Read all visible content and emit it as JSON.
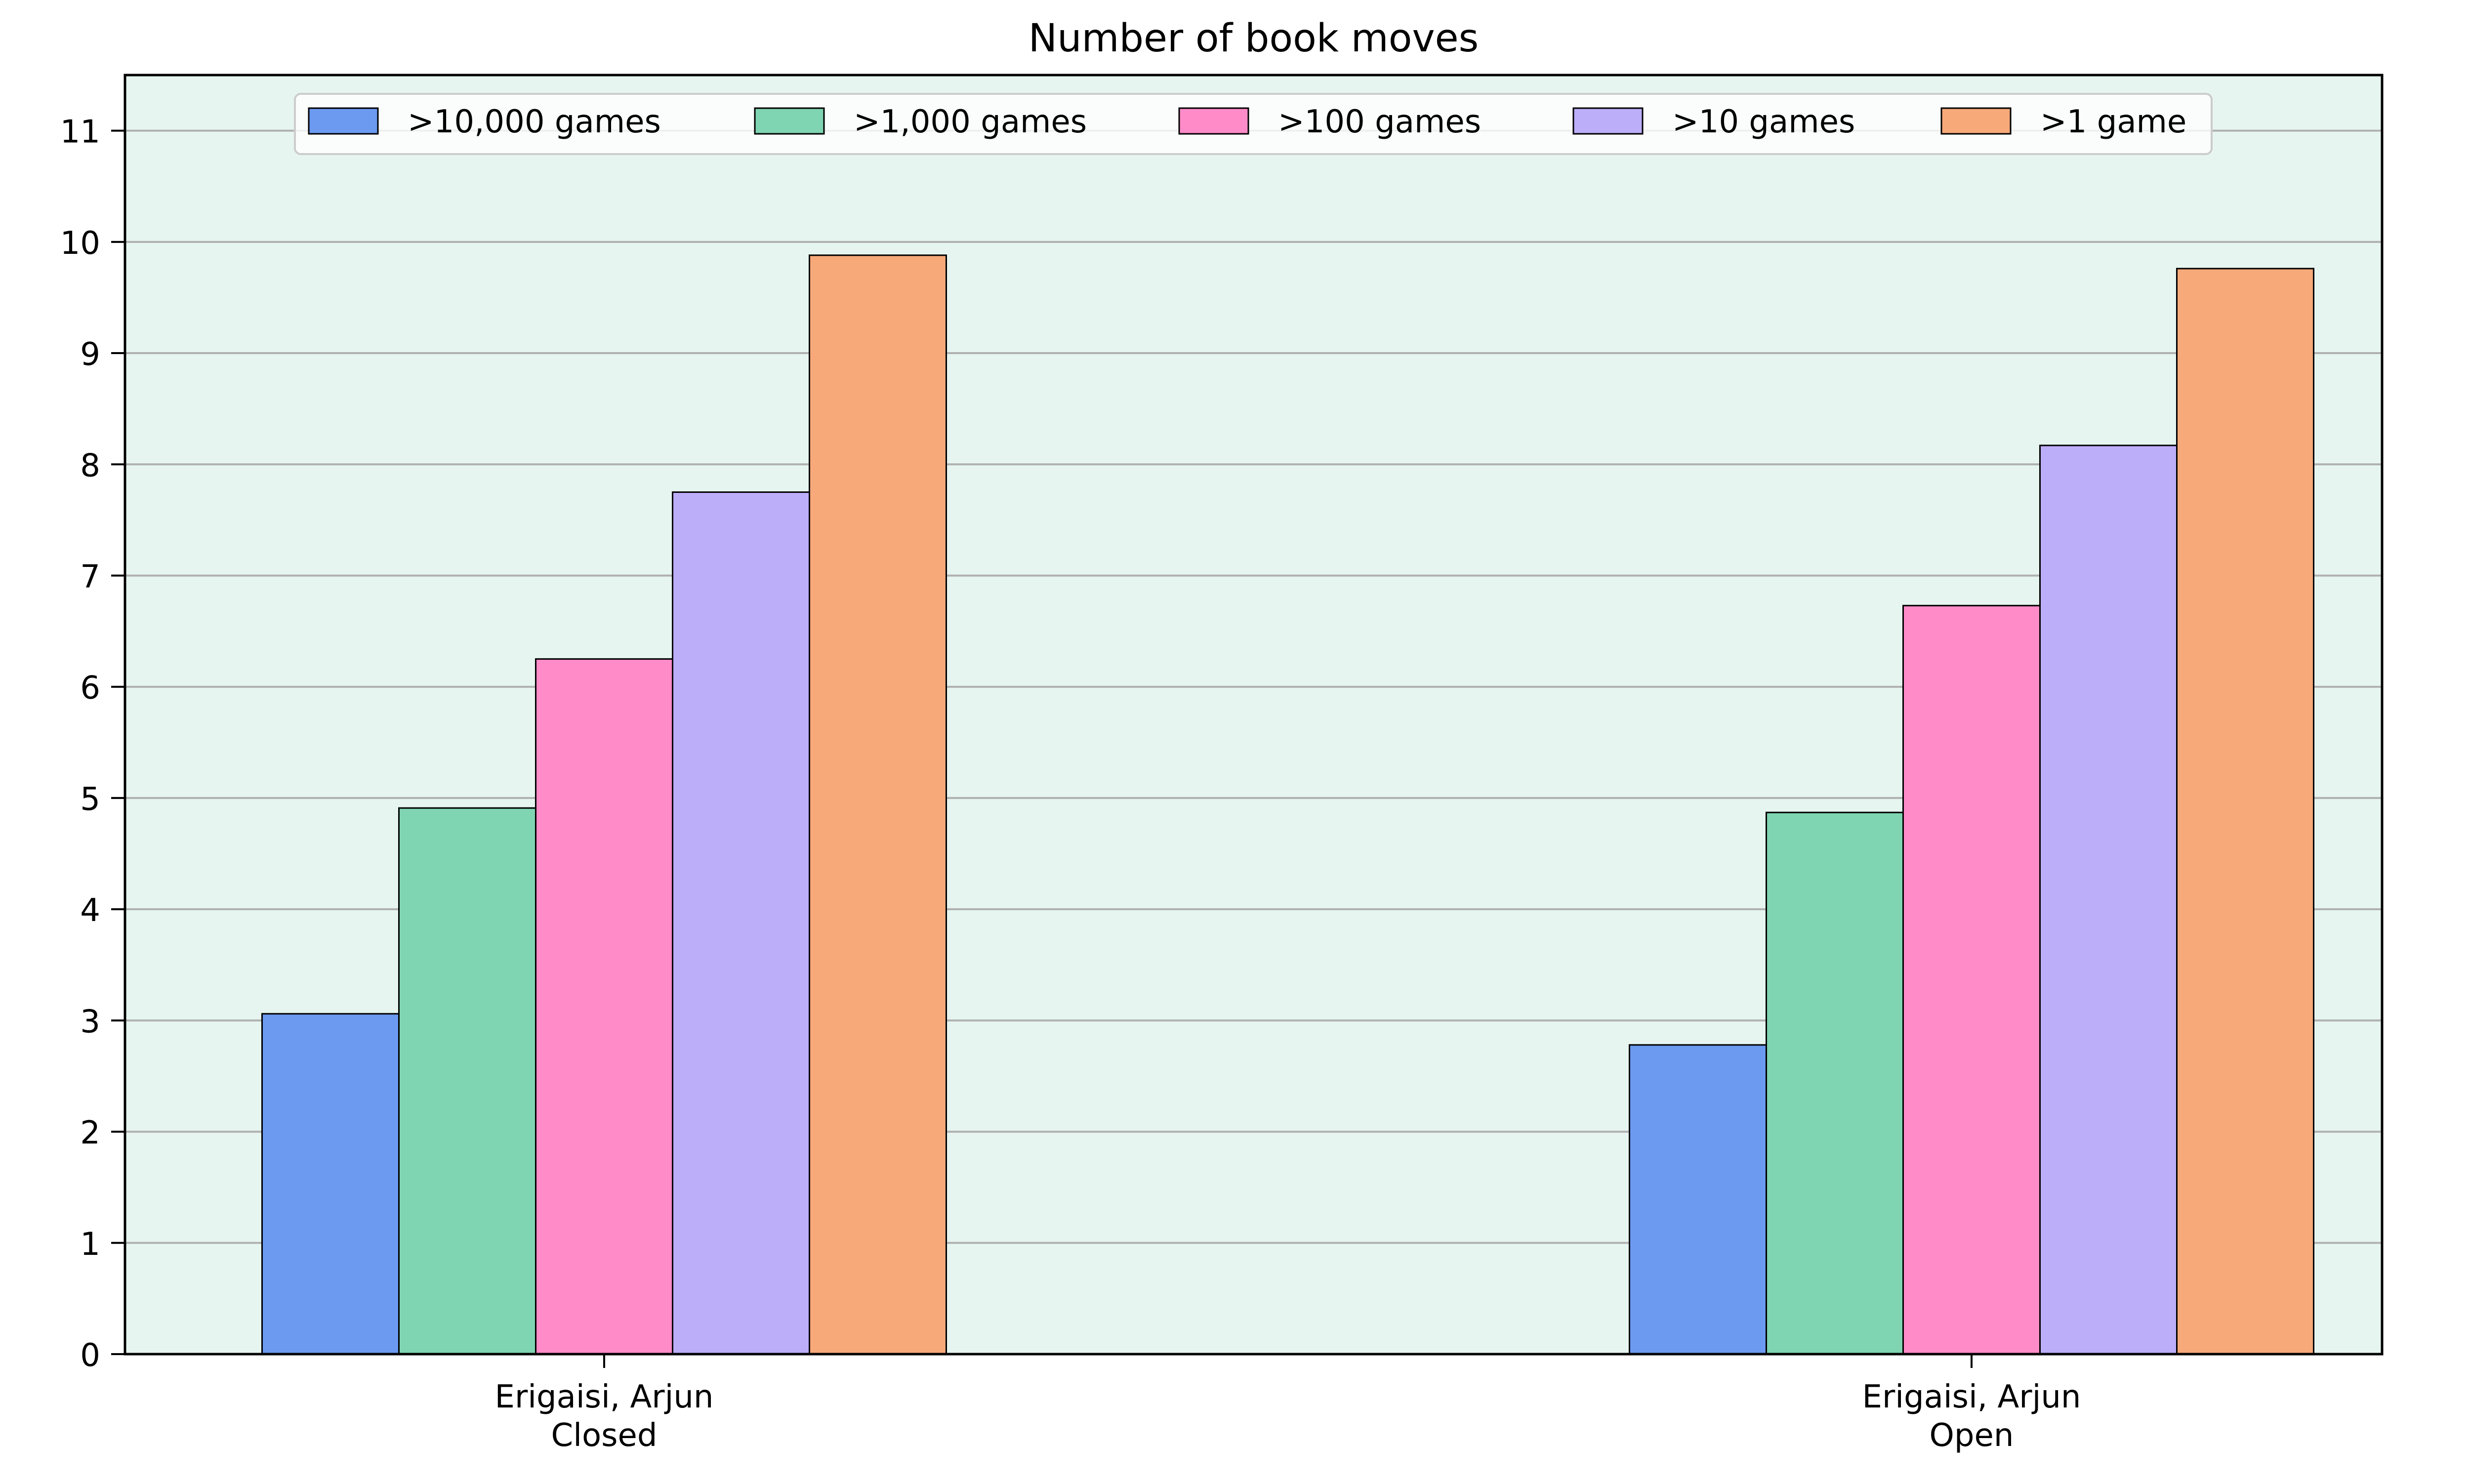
{
  "chart_data": {
    "type": "bar",
    "title": "Number of book moves",
    "xlabel": "",
    "ylabel": "",
    "ylim": [
      0,
      11.5
    ],
    "yticks": [
      0,
      1,
      2,
      3,
      4,
      5,
      6,
      7,
      8,
      9,
      10,
      11
    ],
    "grid": "horizontal",
    "legend_position": "top-center",
    "background_color": "#e6f5ef",
    "categories": [
      [
        "Erigaisi, Arjun",
        "Closed"
      ],
      [
        "Erigaisi, Arjun",
        "Open"
      ]
    ],
    "series": [
      {
        "name": ">10,000 games",
        "color": "#6b9af0",
        "values": [
          3.06,
          2.78
        ]
      },
      {
        "name": ">1,000 games",
        "color": "#7fd4b1",
        "values": [
          4.91,
          4.87
        ]
      },
      {
        "name": ">100 games",
        "color": "#ff8bc9",
        "values": [
          6.25,
          6.73
        ]
      },
      {
        "name": ">10 games",
        "color": "#bdaefa",
        "values": [
          7.75,
          8.17
        ]
      },
      {
        "name": ">1 game",
        "color": "#f7a979",
        "values": [
          9.88,
          9.76
        ]
      }
    ]
  }
}
